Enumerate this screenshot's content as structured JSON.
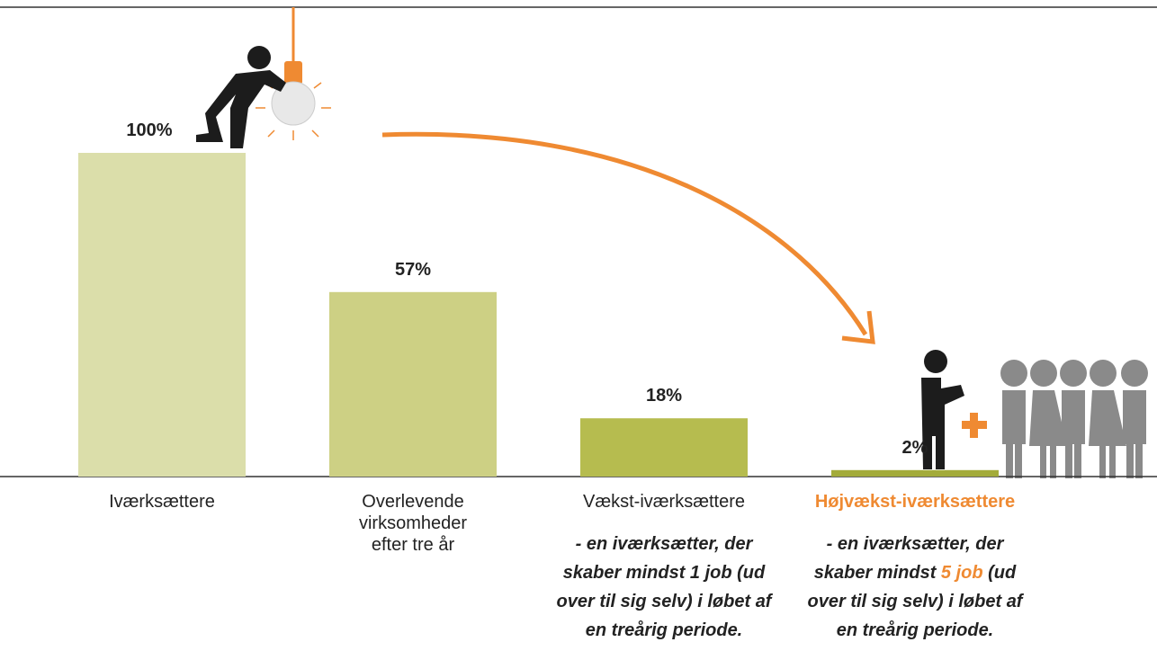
{
  "chart_data": {
    "type": "bar",
    "categories": [
      "Iværksættere",
      "Overlevende virksomheder efter tre år",
      "Vækst-iværksættere",
      "Højvækst-iværksættere"
    ],
    "values": [
      100,
      57,
      18,
      2
    ],
    "value_labels": [
      "100%",
      "57%",
      "18%",
      "2%"
    ],
    "colors": [
      "#dbdeaa",
      "#cdd084",
      "#b6bc4f",
      "#a3ab3a"
    ],
    "descriptions": [
      {
        "before": "- en iværksætter, der skaber mindst ",
        "highlight": "1 job",
        "after": " (ud over til sig selv) i løbet af en treårig periode."
      },
      {
        "before": "- en iværksætter, der skaber mindst ",
        "highlight": "5 job",
        "after": " (ud over til sig selv) i løbet af en treårig periode."
      }
    ]
  }
}
